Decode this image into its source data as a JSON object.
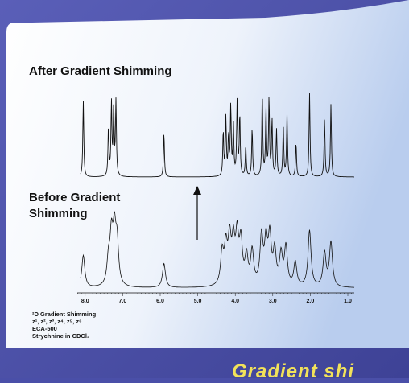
{
  "labels": {
    "after": "After Gradient Shimming",
    "before_line1": "Before Gradient",
    "before_line2": "Shimming"
  },
  "info": {
    "line1": "²D Gradient Shimming",
    "line2": "z¹, z², z³, z⁴, z⁵, z⁶",
    "line3": "ECA-500",
    "line4": "Strychnine in CDCl₃"
  },
  "axis": {
    "ticks": [
      "8.0",
      "7.0",
      "6.0",
      "5.0",
      "4.0",
      "3.0",
      "2.0",
      "1.0"
    ]
  },
  "caption": "Gradient shi",
  "colors": {
    "background": "#4a4fa8",
    "panel_light": "#ffffff",
    "panel_blue": "#c9d8f0",
    "spectrum": "#111111",
    "caption": "#f2e25a"
  }
}
